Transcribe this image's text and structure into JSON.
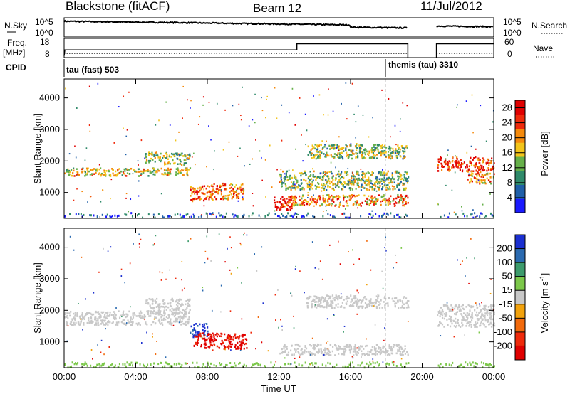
{
  "header": {
    "title": "Blackstone (fitACF)",
    "beam": "Beam 12",
    "date": "11/Jul/2012"
  },
  "labels": {
    "nsky": "N.Sky",
    "nsearch": "N.Search",
    "freq": "Freq.",
    "freq_unit": "[MHz]",
    "nave": "Nave",
    "cpid": "CPID",
    "cpid_1": "tau (fast) 503",
    "cpid_2": "themis (tau) 3310",
    "log_top": "10^5",
    "log_bottom": "10^0",
    "log_top_r": "10^5",
    "log_bottom_r": "10^0",
    "freq_top": "18",
    "freq_bottom": "8",
    "nave_top": "60",
    "nave_bottom": "0",
    "ylabel_power": "Slant Range [km]",
    "ylabel_velocity": "Slant Range [km]",
    "xlabel": "Time UT",
    "power_cbar_label": "Power [dB]",
    "velocity_cbar_label": "Velocity [m s",
    "velocity_cbar_exp": "-1",
    "velocity_cbar_close": "]"
  },
  "chart_data": [
    {
      "type": "heatmap",
      "name": "power",
      "xlabel": "Time UT",
      "ylabel": "Slant Range [km]",
      "x_ticks": [
        "00:00",
        "04:00",
        "08:00",
        "12:00",
        "16:00",
        "20:00",
        "00:00"
      ],
      "xlim_hours": [
        0,
        24
      ],
      "y_ticks": [
        1000,
        2000,
        3000,
        4000
      ],
      "ylim_km": [
        180,
        4600
      ],
      "colorbar": {
        "label": "Power [dB]",
        "ticks": [
          "4",
          "8",
          "12",
          "16",
          "20",
          "24",
          "28"
        ],
        "range": [
          0,
          30
        ],
        "colors": [
          "#1a1aff",
          "#1f5fa8",
          "#2f8a6a",
          "#66b04a",
          "#f2c41a",
          "#f58a0c",
          "#ef2a0b",
          "#e00000"
        ]
      },
      "echo_regions": [
        {
          "t_start": 0.0,
          "t_end": 7.0,
          "range_min": 1550,
          "range_max": 1800,
          "level": 0.55
        },
        {
          "t_start": 4.5,
          "t_end": 7.0,
          "range_min": 1900,
          "range_max": 2300,
          "level": 0.45
        },
        {
          "t_start": 7.0,
          "t_end": 8.3,
          "range_min": 750,
          "range_max": 1250,
          "level": 0.8
        },
        {
          "t_start": 8.2,
          "t_end": 10.0,
          "range_min": 800,
          "range_max": 1300,
          "level": 0.7
        },
        {
          "t_start": 11.7,
          "t_end": 12.7,
          "range_min": 450,
          "range_max": 900,
          "level": 0.95
        },
        {
          "t_start": 12.5,
          "t_end": 19.2,
          "range_min": 600,
          "range_max": 950,
          "level": 0.7
        },
        {
          "t_start": 12.0,
          "t_end": 19.2,
          "range_min": 1100,
          "range_max": 1700,
          "level": 0.45
        },
        {
          "t_start": 13.5,
          "t_end": 19.2,
          "range_min": 2100,
          "range_max": 2550,
          "level": 0.45
        },
        {
          "t_start": 20.8,
          "t_end": 24.0,
          "range_min": 1700,
          "range_max": 2150,
          "level": 0.85
        },
        {
          "t_start": 22.5,
          "t_end": 24.0,
          "range_min": 1300,
          "range_max": 1700,
          "level": 0.7
        }
      ]
    },
    {
      "type": "heatmap",
      "name": "velocity",
      "xlabel": "Time UT",
      "ylabel": "Slant Range [km]",
      "x_ticks": [
        "00:00",
        "04:00",
        "08:00",
        "12:00",
        "16:00",
        "20:00",
        "00:00"
      ],
      "xlim_hours": [
        0,
        24
      ],
      "y_ticks": [
        1000,
        2000,
        3000,
        4000
      ],
      "ylim_km": [
        180,
        4600
      ],
      "colorbar": {
        "label": "Velocity [m s-1]",
        "ticks": [
          "200",
          "100",
          "50",
          "15",
          "-15",
          "-50",
          "-100",
          "-200"
        ],
        "range": [
          -250,
          250
        ],
        "colors": [
          "#1a2fd0",
          "#2a6ab0",
          "#3d9b6c",
          "#7cc84a",
          "#c8c8c8",
          "#f2a20c",
          "#f26a0c",
          "#ef2a0b",
          "#e00000"
        ]
      },
      "echo_regions": [
        {
          "t_start": 0.0,
          "t_end": 7.0,
          "range_min": 1550,
          "range_max": 2000,
          "v": 0
        },
        {
          "t_start": 4.5,
          "t_end": 7.0,
          "range_min": 1900,
          "range_max": 2400,
          "v": 0
        },
        {
          "t_start": 7.0,
          "t_end": 8.0,
          "range_min": 1150,
          "range_max": 1600,
          "v": 180
        },
        {
          "t_start": 7.2,
          "t_end": 10.2,
          "range_min": 800,
          "range_max": 1300,
          "v": -220
        },
        {
          "t_start": 12.0,
          "t_end": 19.2,
          "range_min": 600,
          "range_max": 950,
          "v": 0
        },
        {
          "t_start": 13.5,
          "t_end": 19.2,
          "range_min": 2100,
          "range_max": 2500,
          "v": 0
        },
        {
          "t_start": 20.8,
          "t_end": 24.0,
          "range_min": 1500,
          "range_max": 2200,
          "v": 0
        }
      ]
    }
  ]
}
